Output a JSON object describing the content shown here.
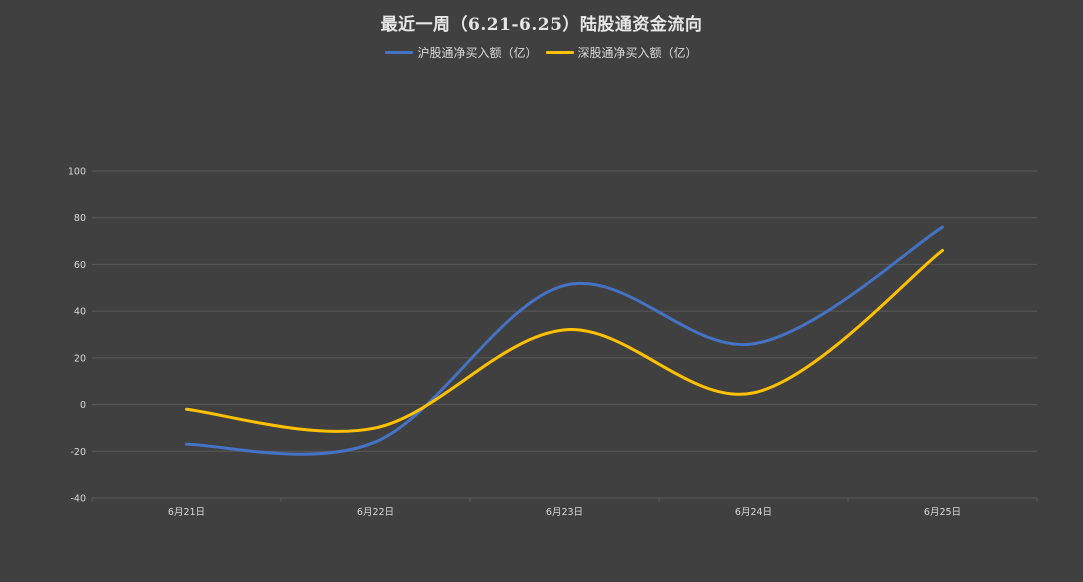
{
  "chart_data": {
    "type": "line",
    "title": "最近一周（6.21-6.25）陆股通资金流向",
    "categories": [
      "6月21日",
      "6月22日",
      "6月23日",
      "6月24日",
      "6月25日"
    ],
    "series": [
      {
        "name": "沪股通净买入额（亿）",
        "values": [
          -17,
          -16,
          51,
          26,
          76
        ],
        "color": "#4472c4"
      },
      {
        "name": "深股通净买入额（亿）",
        "values": [
          -2,
          -10,
          32,
          5,
          66
        ],
        "color": "#ffc000"
      }
    ],
    "ylim": [
      -40,
      100
    ],
    "yticks": [
      -40,
      -20,
      0,
      20,
      40,
      60,
      80,
      100
    ],
    "grid": true,
    "legend_position": "top",
    "background": "#404040",
    "gridline_color": "#595959"
  }
}
